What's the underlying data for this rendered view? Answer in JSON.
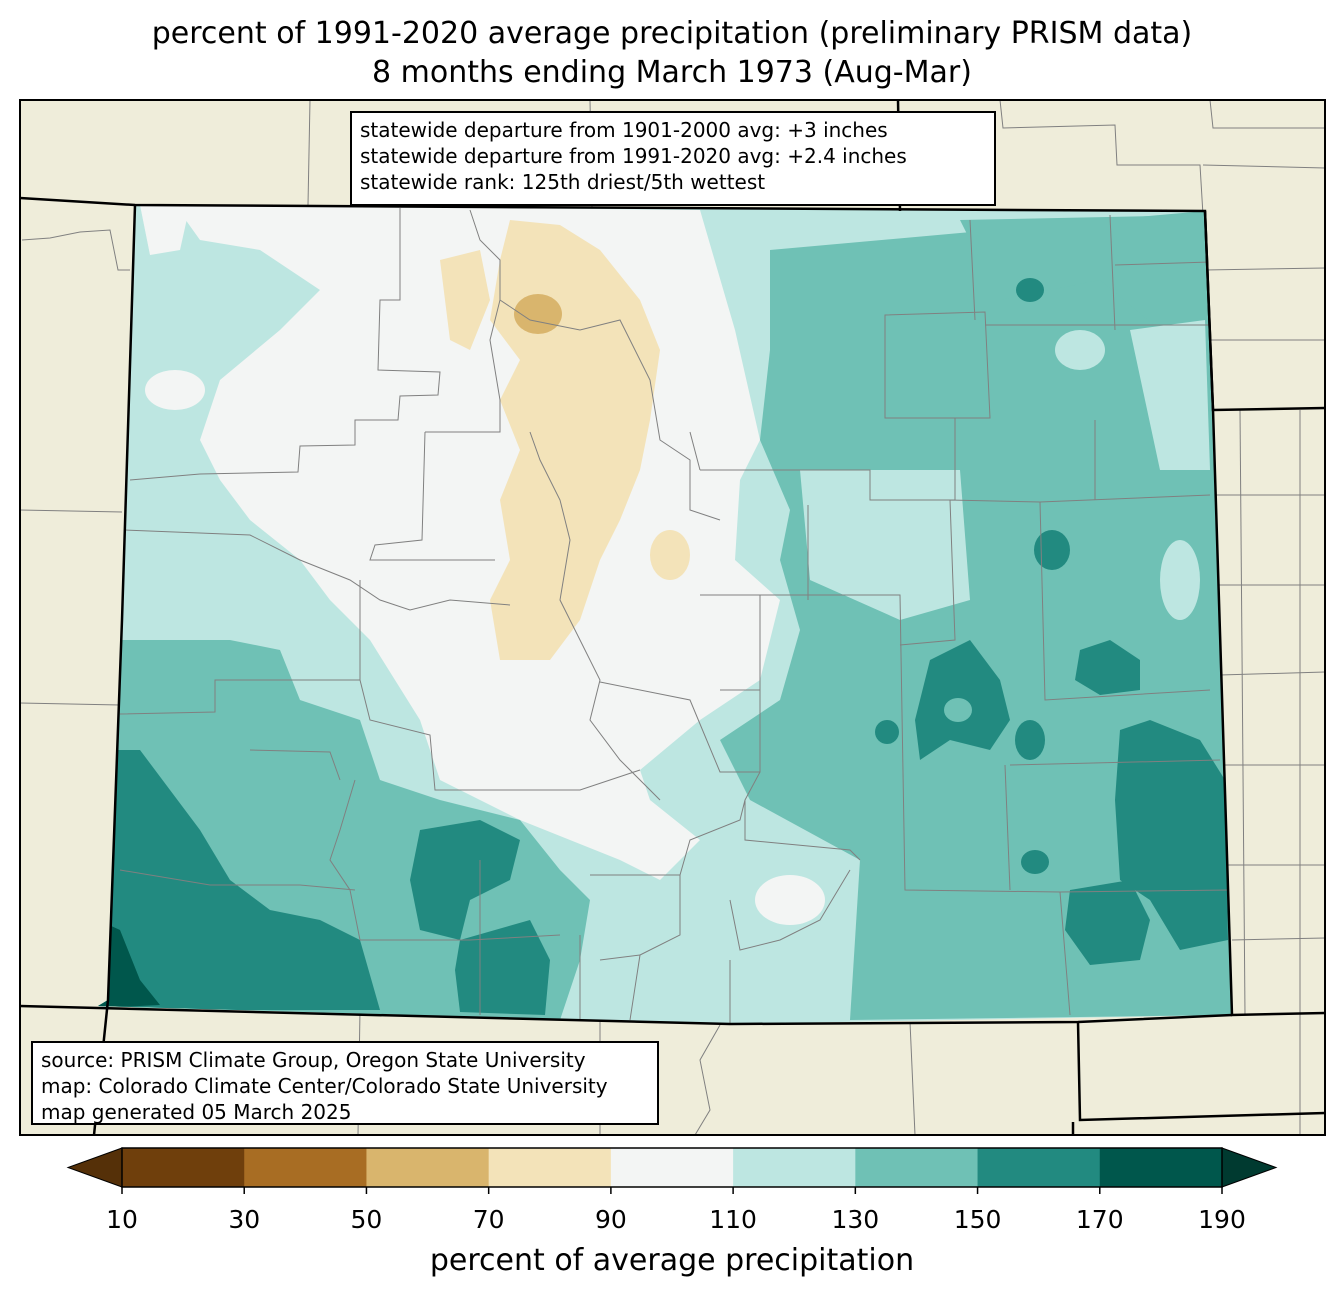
{
  "title": {
    "line1": "percent of 1991-2020 average precipitation (preliminary PRISM data)",
    "line2": "8 months ending March 1973 (Aug-Mar)"
  },
  "stats": {
    "line1": "statewide departure from 1901-2000 avg: +3 inches",
    "line2": "statewide departure from 1991-2020 avg: +2.4 inches",
    "line3": "statewide rank: 125th driest/5th wettest"
  },
  "source": {
    "line1": "source: PRISM Climate Group, Oregon State University",
    "line2": "map: Colorado Climate Center/Colorado State University",
    "line3": "map generated 05 March 2025"
  },
  "colorbar": {
    "label": "percent of average precipitation",
    "ticks": [
      "10",
      "30",
      "50",
      "70",
      "90",
      "110",
      "130",
      "150",
      "170",
      "190"
    ],
    "colors": [
      "#6f3f0c",
      "#a86d23",
      "#d9b56d",
      "#f3e3b9",
      "#f3f5f4",
      "#bde6e1",
      "#6fc1b5",
      "#228a80",
      "#00574c"
    ],
    "under_color": "#553008",
    "over_color": "#003a30"
  },
  "map_colors": {
    "background": "#efedda",
    "pct_50_70": "#d9b56d",
    "pct_70_90": "#f3e3b9",
    "pct_90_110": "#f3f5f4",
    "pct_110_130": "#bde6e1",
    "pct_130_150": "#6fc1b5",
    "pct_150_170": "#228a80",
    "pct_170_190": "#00574c",
    "county_lines": "#808080",
    "state_lines": "#000000"
  }
}
